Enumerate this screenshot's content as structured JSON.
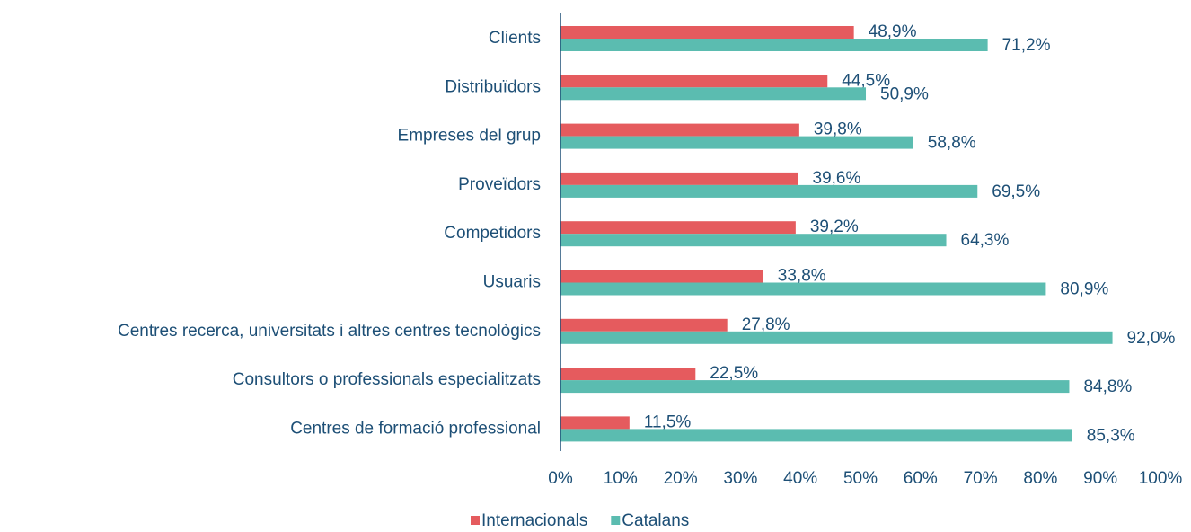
{
  "chart_data": {
    "type": "hbar",
    "categories": [
      "Clients",
      "Distribuïdors",
      "Empreses del grup",
      "Proveïdors",
      "Competidors",
      "Usuaris",
      "Centres recerca, universitats i altres centres tecnològics",
      "Consultors o professionals especialitzats",
      "Centres de formació professional"
    ],
    "series": [
      {
        "name": "Internacionals",
        "color": "#e55b5e",
        "values": [
          48.9,
          44.5,
          39.8,
          39.6,
          39.2,
          33.8,
          27.8,
          22.5,
          11.5
        ],
        "value_labels": [
          "48,9%",
          "44,5%",
          "39,8%",
          "39,6%",
          "39,2%",
          "33,8%",
          "27,8%",
          "22,5%",
          "11,5%"
        ]
      },
      {
        "name": "Catalans",
        "color": "#5bbcb0",
        "values": [
          71.2,
          50.9,
          58.8,
          69.5,
          64.3,
          80.9,
          92.0,
          84.8,
          85.3
        ],
        "value_labels": [
          "71,2%",
          "50,9%",
          "58,8%",
          "69,5%",
          "64,3%",
          "80,9%",
          "92,0%",
          "84,8%",
          "85,3%"
        ]
      }
    ],
    "xlim": [
      0,
      100
    ],
    "xticks": [
      {
        "value": 0,
        "label": "0%"
      },
      {
        "value": 10,
        "label": "10%"
      },
      {
        "value": 20,
        "label": "20%"
      },
      {
        "value": 30,
        "label": "30%"
      },
      {
        "value": 40,
        "label": "40%"
      },
      {
        "value": 50,
        "label": "50%"
      },
      {
        "value": 60,
        "label": "60%"
      },
      {
        "value": 70,
        "label": "70%"
      },
      {
        "value": 80,
        "label": "80%"
      },
      {
        "value": 90,
        "label": "90%"
      },
      {
        "value": 100,
        "label": "100%"
      }
    ],
    "grid": false,
    "legend": "bottom"
  }
}
